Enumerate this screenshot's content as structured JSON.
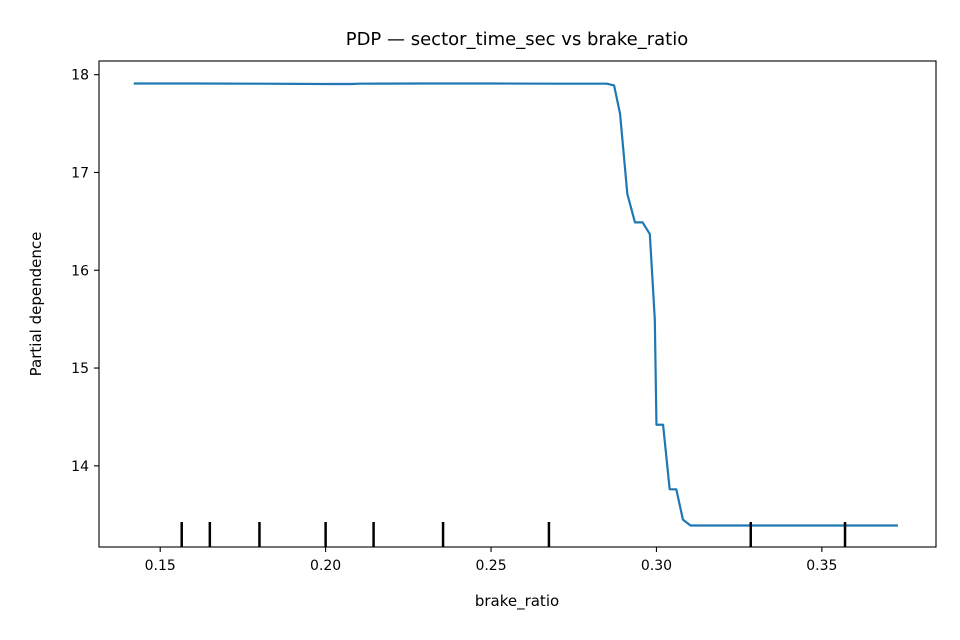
{
  "chart_data": {
    "type": "line",
    "title": "PDP — sector_time_sec vs brake_ratio",
    "xlabel": "brake_ratio",
    "ylabel": "Partial dependence",
    "xlim": [
      0.1315,
      0.3845
    ],
    "ylim": [
      13.17,
      18.14
    ],
    "xticks": [
      0.15,
      0.2,
      0.25,
      0.3,
      0.35
    ],
    "xtick_labels": [
      "0.15",
      "0.20",
      "0.25",
      "0.30",
      "0.35"
    ],
    "yticks": [
      14,
      15,
      16,
      17,
      18
    ],
    "ytick_labels": [
      "14",
      "15",
      "16",
      "17",
      "18"
    ],
    "grid": false,
    "line_color": "#1f77b4",
    "rug_color": "#000000",
    "series": [
      {
        "x": [
          0.142,
          0.16,
          0.18,
          0.2,
          0.208,
          0.21,
          0.23,
          0.25,
          0.27,
          0.285,
          0.2872,
          0.289,
          0.2912,
          0.2935,
          0.2958,
          0.298,
          0.2995,
          0.3,
          0.302,
          0.304,
          0.306,
          0.308,
          0.3103,
          0.3125,
          0.33,
          0.35,
          0.373
        ],
        "y": [
          17.91,
          17.91,
          17.908,
          17.905,
          17.905,
          17.908,
          17.91,
          17.91,
          17.908,
          17.908,
          17.89,
          17.6,
          16.78,
          16.49,
          16.49,
          16.37,
          15.5,
          14.42,
          14.42,
          13.76,
          13.76,
          13.45,
          13.39,
          13.39,
          13.39,
          13.39,
          13.39
        ]
      }
    ],
    "rug": [
      0.1565,
      0.165,
      0.18,
      0.2,
      0.2145,
      0.2355,
      0.2675,
      0.3285,
      0.357
    ]
  }
}
